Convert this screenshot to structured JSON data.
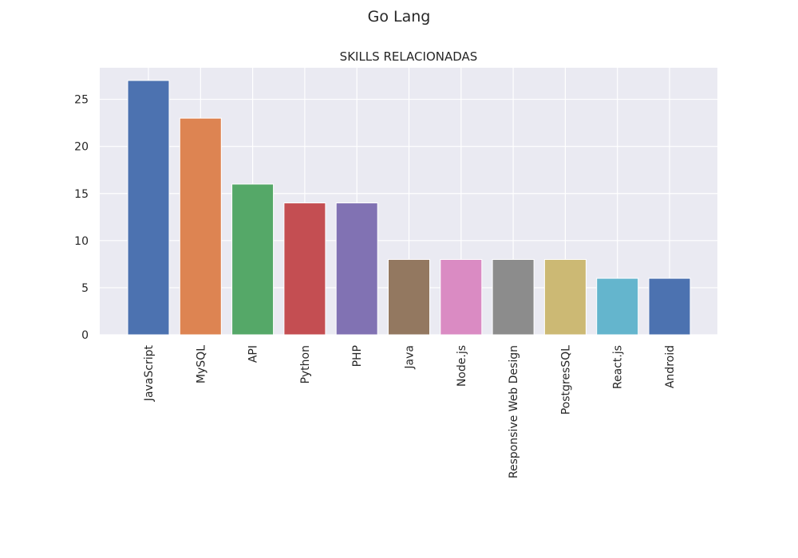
{
  "figure": {
    "suptitle": "Go Lang"
  },
  "chart_data": {
    "type": "bar",
    "title": "SKILLS RELACIONADAS",
    "xlabel": "",
    "ylabel": "",
    "categories": [
      "JavaScript",
      "MySQL",
      "API",
      "Python",
      "PHP",
      "Java",
      "Node.js",
      "Responsive Web Design",
      "PostgresSQL",
      "React.js",
      "Android"
    ],
    "values": [
      27,
      23,
      16,
      14,
      14,
      8,
      8,
      8,
      8,
      6,
      6
    ],
    "colors": [
      "#4c72b0",
      "#dd8452",
      "#55a868",
      "#c44e52",
      "#8172b3",
      "#937860",
      "#da8bc3",
      "#8c8c8c",
      "#ccb974",
      "#64b5cd",
      "#4c72b0"
    ],
    "ylim": [
      0,
      28.35
    ],
    "yticks": [
      0,
      5,
      10,
      15,
      20,
      25
    ],
    "grid": true,
    "background": "#eaeaf2",
    "grid_color": "#ffffff"
  }
}
